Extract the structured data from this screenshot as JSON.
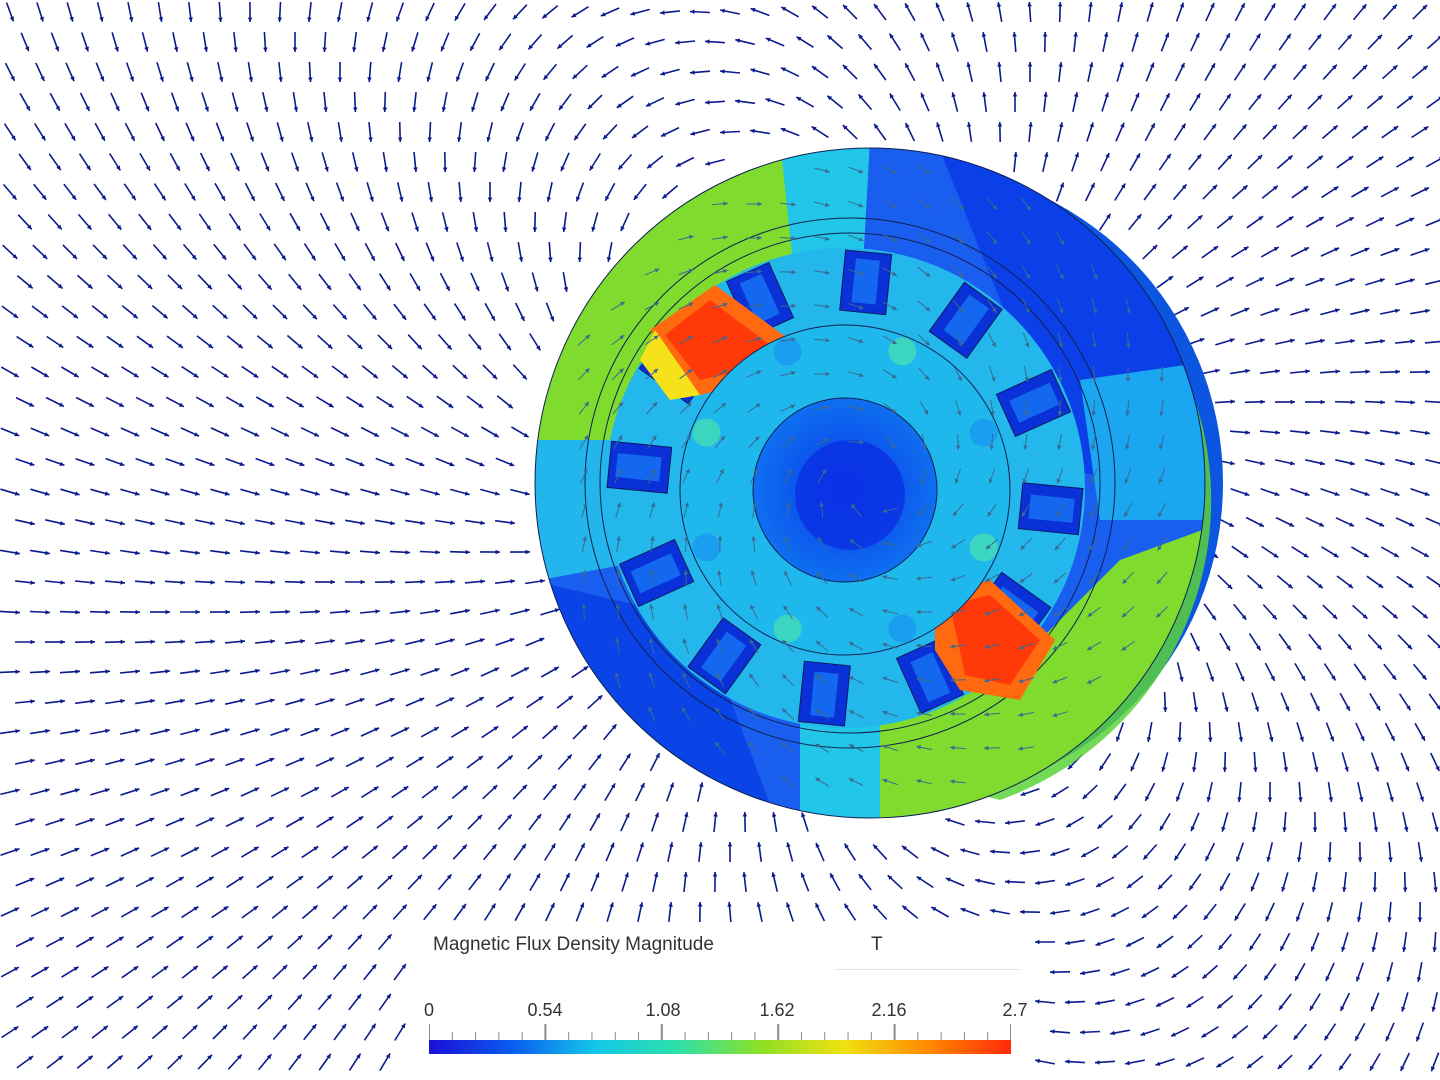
{
  "legend": {
    "title": "Magnetic Flux Density Magnitude",
    "unit": "T",
    "ticks": [
      "0",
      "0.54",
      "1.08",
      "1.62",
      "2.16",
      "2.7"
    ],
    "min": 0,
    "max": 2.7,
    "colormap": [
      "#1a0fd6",
      "#0a5cf0",
      "#13c8e8",
      "#2ee0a8",
      "#8ee025",
      "#f0e010",
      "#ff8a00",
      "#ff2a0a"
    ]
  },
  "colors": {
    "arrow": "#0b1a8c",
    "background": "#ffffff"
  }
}
